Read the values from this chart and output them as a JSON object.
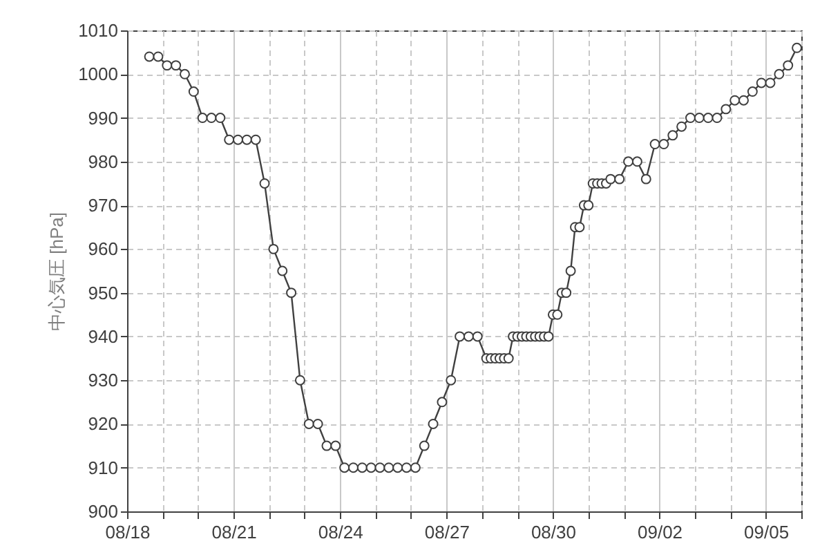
{
  "chart_data": {
    "type": "line",
    "ylabel": "中心気圧 [hPa]",
    "x": [
      "--08-18T15:00",
      "--08-18T21:00",
      "--08-19T03:00",
      "--08-19T09:00",
      "--08-19T15:00",
      "--08-19T21:00",
      "--08-20T03:00",
      "--08-20T09:00",
      "--08-20T15:00",
      "--08-20T21:00",
      "--08-21T03:00",
      "--08-21T09:00",
      "--08-21T15:00",
      "--08-21T21:00",
      "--08-22T03:00",
      "--08-22T09:00",
      "--08-22T15:00",
      "--08-22T21:00",
      "--08-23T03:00",
      "--08-23T09:00",
      "--08-23T15:00",
      "--08-23T21:00",
      "--08-24T03:00",
      "--08-24T09:00",
      "--08-24T15:00",
      "--08-24T21:00",
      "--08-25T03:00",
      "--08-25T09:00",
      "--08-25T15:00",
      "--08-25T21:00",
      "--08-26T03:00",
      "--08-26T09:00",
      "--08-26T15:00",
      "--08-26T21:00",
      "--08-27T03:00",
      "--08-27T09:00",
      "--08-27T15:00",
      "--08-27T21:00",
      "--08-28T03:00",
      "--08-28T06:00",
      "--08-28T09:00",
      "--08-28T12:00",
      "--08-28T15:00",
      "--08-28T18:00",
      "--08-28T21:00",
      "--08-29T00:00",
      "--08-29T03:00",
      "--08-29T06:00",
      "--08-29T09:00",
      "--08-29T12:00",
      "--08-29T15:00",
      "--08-29T18:00",
      "--08-29T21:00",
      "--08-30T00:00",
      "--08-30T03:00",
      "--08-30T06:00",
      "--08-30T09:00",
      "--08-30T12:00",
      "--08-30T15:00",
      "--08-30T18:00",
      "--08-30T21:00",
      "--08-31T00:00",
      "--08-31T03:00",
      "--08-31T06:00",
      "--08-31T09:00",
      "--08-31T12:00",
      "--08-31T15:00",
      "--08-31T21:00",
      "--09-01T03:00",
      "--09-01T09:00",
      "--09-01T15:00",
      "--09-01T21:00",
      "--09-02T03:00",
      "--09-02T09:00",
      "--09-02T15:00",
      "--09-02T21:00",
      "--09-03T03:00",
      "--09-03T09:00",
      "--09-03T15:00",
      "--09-03T21:00",
      "--09-04T03:00",
      "--09-04T09:00",
      "--09-04T15:00",
      "--09-04T21:00",
      "--09-05T03:00",
      "--09-05T09:00",
      "--09-05T15:00",
      "--09-05T21:00"
    ],
    "series": [
      {
        "color": "#404040",
        "values": [
          1004,
          1004,
          1002,
          1002,
          1000,
          996,
          990,
          990,
          990,
          985,
          985,
          985,
          985,
          975,
          960,
          955,
          950,
          930,
          920,
          920,
          915,
          915,
          910,
          910,
          910,
          910,
          910,
          910,
          910,
          910,
          910,
          915,
          920,
          925,
          930,
          940,
          940,
          940,
          935,
          935,
          935,
          935,
          935,
          935,
          940,
          940,
          940,
          940,
          940,
          940,
          940,
          940,
          940,
          945,
          945,
          950,
          950,
          955,
          965,
          965,
          970,
          970,
          975,
          975,
          975,
          975,
          976,
          976,
          980,
          980,
          976,
          984,
          984,
          986,
          988,
          990,
          990,
          990,
          990,
          992,
          994,
          994,
          996,
          998,
          998,
          1000,
          1002,
          1006
        ]
      }
    ],
    "xlim": [
      "--08-18",
      "--09-06"
    ],
    "xticks": [
      {
        "value": "--08-18",
        "label": "08/18"
      },
      {
        "value": "--08-19",
        "label": null
      },
      {
        "value": "--08-20",
        "label": null
      },
      {
        "value": "--08-21",
        "label": "08/21"
      },
      {
        "value": "--08-22",
        "label": null
      },
      {
        "value": "--08-23",
        "label": null
      },
      {
        "value": "--08-24",
        "label": "08/24"
      },
      {
        "value": "--08-25",
        "label": null
      },
      {
        "value": "--08-26",
        "label": null
      },
      {
        "value": "--08-27",
        "label": "08/27"
      },
      {
        "value": "--08-28",
        "label": null
      },
      {
        "value": "--08-29",
        "label": null
      },
      {
        "value": "--08-30",
        "label": "08/30"
      },
      {
        "value": "--08-31",
        "label": null
      },
      {
        "value": "--09-01",
        "label": null
      },
      {
        "value": "--09-02",
        "label": "09/02"
      },
      {
        "value": "--09-03",
        "label": null
      },
      {
        "value": "--09-04",
        "label": null
      },
      {
        "value": "--09-05",
        "label": "09/05"
      },
      {
        "value": "--09-06",
        "label": null
      }
    ],
    "ylim": [
      900,
      1010
    ],
    "yticks": [
      900,
      910,
      920,
      930,
      940,
      950,
      960,
      970,
      980,
      990,
      1000,
      1010
    ],
    "grid": true,
    "marker": "circle",
    "line_style": "solid",
    "legend": false
  }
}
